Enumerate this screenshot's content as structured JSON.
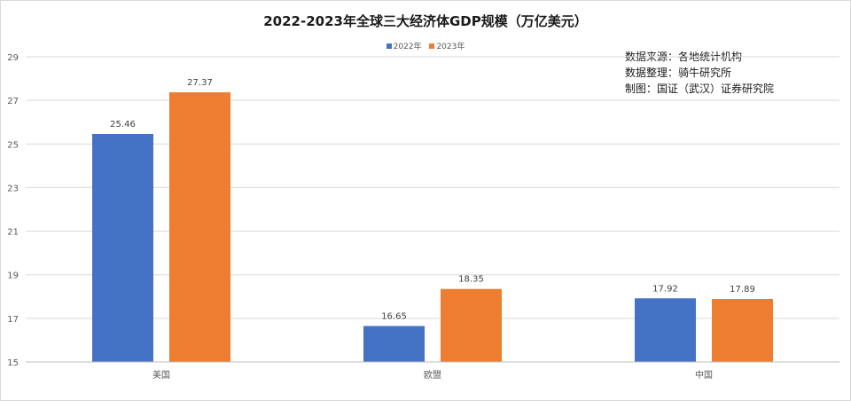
{
  "chart_data": {
    "type": "bar",
    "title": "2022-2023年全球三大经济体GDP规模（万亿美元）",
    "xlabel": "",
    "ylabel": "",
    "categories": [
      "美国",
      "欧盟",
      "中国"
    ],
    "series": [
      {
        "name": "2022年",
        "color": "#4472c4",
        "values": [
          25.46,
          16.65,
          17.92
        ]
      },
      {
        "name": "2023年",
        "color": "#ed7d31",
        "values": [
          27.37,
          18.35,
          17.89
        ]
      }
    ],
    "ylim": [
      15,
      29
    ],
    "yticks": [
      15,
      17,
      19,
      21,
      23,
      25,
      27,
      29
    ],
    "grid": true,
    "legend_position": "top",
    "data_labels": true
  },
  "notes": [
    "数据来源：各地统计机构",
    "数据整理：骑牛研究所",
    "制图：国证（武汉）证券研究院"
  ]
}
